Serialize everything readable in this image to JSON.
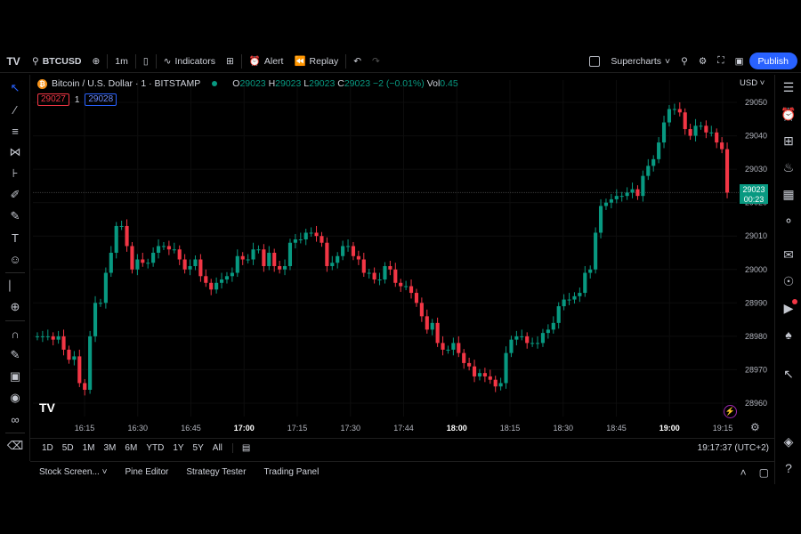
{
  "toolbar": {
    "symbol": "BTCUSD",
    "interval": "1m",
    "indicators_label": "Indicators",
    "alert_label": "Alert",
    "replay_label": "Replay",
    "layout_label": "Supercharts",
    "publish_label": "Publish"
  },
  "legend": {
    "title": "Bitcoin / U.S. Dollar · 1 · BITSTAMP",
    "o_label": "O",
    "o_value": "29023",
    "h_label": "H",
    "h_value": "29023",
    "l_label": "L",
    "l_value": "29023",
    "c_label": "C",
    "c_value": "29023",
    "change": "−2 (−0.01%)",
    "vol_label": "Vol",
    "vol_value": "0.45",
    "bid": "29027",
    "spread": "1",
    "ask": "29028"
  },
  "price_axis": {
    "currency": "USD",
    "current_price": "29023",
    "countdown": "00:23"
  },
  "range_buttons": [
    "1D",
    "5D",
    "1M",
    "3M",
    "6M",
    "YTD",
    "1Y",
    "5Y",
    "All"
  ],
  "clock": "19:17:37 (UTC+2)",
  "bottom_tabs": [
    "Stock Screen...",
    "Pine Editor",
    "Strategy Tester",
    "Trading Panel"
  ],
  "colors": {
    "up": "#089981",
    "down": "#f23645",
    "accent": "#2962ff"
  },
  "chart_data": {
    "type": "candlestick",
    "yticks": [
      28960,
      28970,
      28980,
      28990,
      29000,
      29010,
      29020,
      29030,
      29040,
      29050
    ],
    "ylim": [
      28956,
      29054
    ],
    "xticks": [
      {
        "label": "16:15",
        "bold": false
      },
      {
        "label": "16:30",
        "bold": false
      },
      {
        "label": "16:45",
        "bold": false
      },
      {
        "label": "17:00",
        "bold": true
      },
      {
        "label": "17:15",
        "bold": false
      },
      {
        "label": "17:30",
        "bold": false
      },
      {
        "label": "17:44",
        "bold": false
      },
      {
        "label": "18:00",
        "bold": true
      },
      {
        "label": "18:15",
        "bold": false
      },
      {
        "label": "18:30",
        "bold": false
      },
      {
        "label": "18:45",
        "bold": false
      },
      {
        "label": "19:00",
        "bold": true
      },
      {
        "label": "19:15",
        "bold": false
      }
    ],
    "current_price": 29023,
    "closes": [
      28980,
      28980,
      28980,
      28979,
      28980,
      28976,
      28973,
      28974,
      28966,
      28964,
      28980,
      28990,
      28990,
      28999,
      29005,
      29013,
      29013,
      29007,
      29000,
      29003,
      29002,
      29002,
      29005,
      29007,
      29007,
      29006,
      29006,
      29003,
      29000,
      29001,
      29003,
      28998,
      28996,
      28994,
      28996,
      28997,
      28998,
      28999,
      29004,
      29003,
      29003,
      29006,
      29006,
      29001,
      29005,
      29001,
      29000,
      29001,
      29008,
      29009,
      29009,
      29011,
      29011,
      29010,
      29008,
      29001,
      29002,
      29004,
      29007,
      29007,
      29004,
      29003,
      28999,
      28999,
      28997,
      28997,
      29001,
      29000,
      28996,
      28995,
      28995,
      28993,
      28990,
      28986,
      28982,
      28984,
      28978,
      28976,
      28976,
      28978,
      28975,
      28972,
      28971,
      28968,
      28969,
      28968,
      28967,
      28965,
      28966,
      28975,
      28979,
      28980,
      28980,
      28978,
      28978,
      28978,
      28981,
      28982,
      28984,
      28989,
      28991,
      28991,
      28992,
      28993,
      28999,
      29000,
      29011,
      29019,
      29020,
      29021,
      29022,
      29022,
      29023,
      29024,
      29022,
      29028,
      29031,
      29033,
      29038,
      29044,
      29048,
      29048,
      29047,
      29042,
      29040,
      29043,
      29043,
      29041,
      29041,
      29038,
      29036,
      29023
    ]
  }
}
